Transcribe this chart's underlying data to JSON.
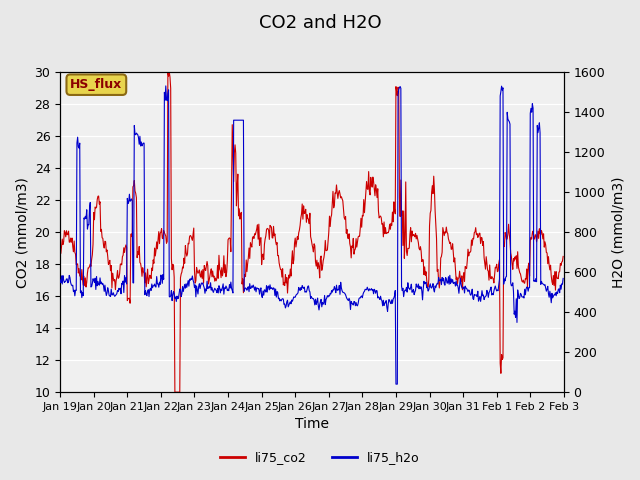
{
  "title": "CO2 and H2O",
  "xlabel": "Time",
  "ylabel_left": "CO2 (mmol/m3)",
  "ylabel_right": "H2O (mmol/m3)",
  "ylim_left": [
    10,
    30
  ],
  "ylim_right": [
    0,
    1600
  ],
  "yticks_left": [
    10,
    12,
    14,
    16,
    18,
    20,
    22,
    24,
    26,
    28,
    30
  ],
  "yticks_right": [
    0,
    200,
    400,
    600,
    800,
    1000,
    1200,
    1400,
    1600
  ],
  "xtick_labels": [
    "Jan 19",
    "Jan 20",
    "Jan 21",
    "Jan 22",
    "Jan 23",
    "Jan 24",
    "Jan 25",
    "Jan 26",
    "Jan 27",
    "Jan 28",
    "Jan 29",
    "Jan 30",
    "Jan 31",
    "Feb 1",
    "Feb 2",
    "Feb 3"
  ],
  "legend_labels": [
    "li75_co2",
    "li75_h2o"
  ],
  "co2_color": "#cc0000",
  "h2o_color": "#0000cc",
  "bg_color": "#e8e8e8",
  "plot_bg_color": "#f0f0f0",
  "annotation_text": "HS_flux",
  "annotation_bg": "#e8d44d",
  "annotation_border": "#8b6914",
  "title_fontsize": 13,
  "label_fontsize": 10,
  "tick_fontsize": 9
}
